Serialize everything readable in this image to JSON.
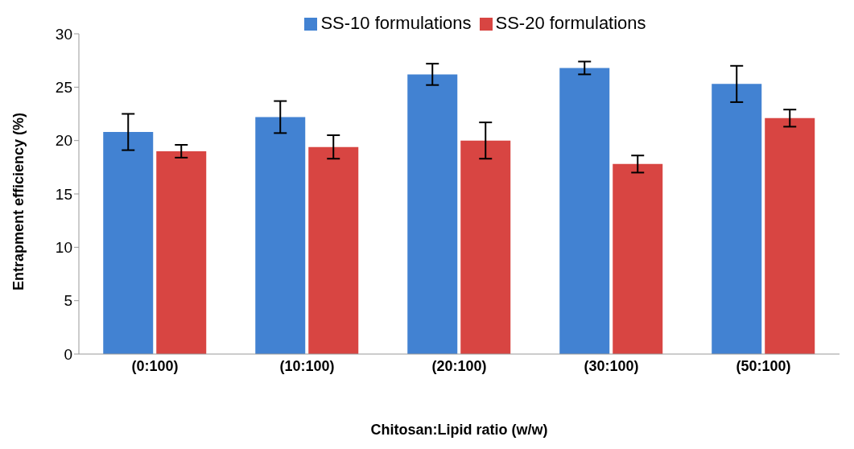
{
  "chart_data": {
    "type": "bar",
    "xlabel": "Chitosan:Lipid ratio (w/w)",
    "ylabel": "Entrapment efficiency (%)",
    "categories": [
      "(0:100)",
      "(10:100)",
      "(20:100)",
      "(30:100)",
      "(50:100)"
    ],
    "series": [
      {
        "name": "SS-10 formulations",
        "color": "#4282d2",
        "values": [
          20.8,
          22.2,
          26.2,
          26.8,
          25.3
        ],
        "errors": [
          1.7,
          1.5,
          1.0,
          0.6,
          1.7
        ]
      },
      {
        "name": "SS-20 formulations",
        "color": "#d84542",
        "values": [
          19.0,
          19.4,
          20.0,
          17.8,
          22.1
        ],
        "errors": [
          0.6,
          1.1,
          1.7,
          0.8,
          0.8
        ]
      }
    ],
    "ylim": [
      0,
      30
    ],
    "yticks": [
      0,
      5,
      10,
      15,
      20,
      25,
      30
    ],
    "legend": "top",
    "grid": false
  }
}
